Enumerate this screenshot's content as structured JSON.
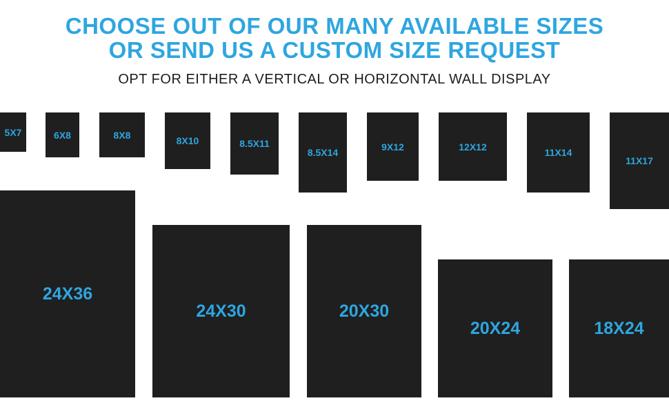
{
  "headline": {
    "line1": "CHOOSE OUT OF OUR MANY AVAILABLE SIZES",
    "line2": "OR SEND US A CUSTOM SIZE REQUEST"
  },
  "subheadline": "OPT FOR EITHER A VERTICAL OR HORIZONTAL WALL DISPLAY",
  "colors": {
    "accent": "#2ea6e0",
    "frame": "#1f1f1f",
    "text": "#1c1c1c"
  },
  "sizes": {
    "s5x7": "5X7",
    "s6x8": "6X8",
    "s8x8": "8X8",
    "s8x10": "8X10",
    "s8_5x11": "8.5X11",
    "s8_5x14": "8.5X14",
    "s9x12": "9X12",
    "s12x12": "12X12",
    "s11x14": "11X14",
    "s11x17": "11X17",
    "s24x36": "24X36",
    "s24x30": "24X30",
    "s20x30": "20X30",
    "s20x24": "20X24",
    "s18x24": "18X24"
  }
}
